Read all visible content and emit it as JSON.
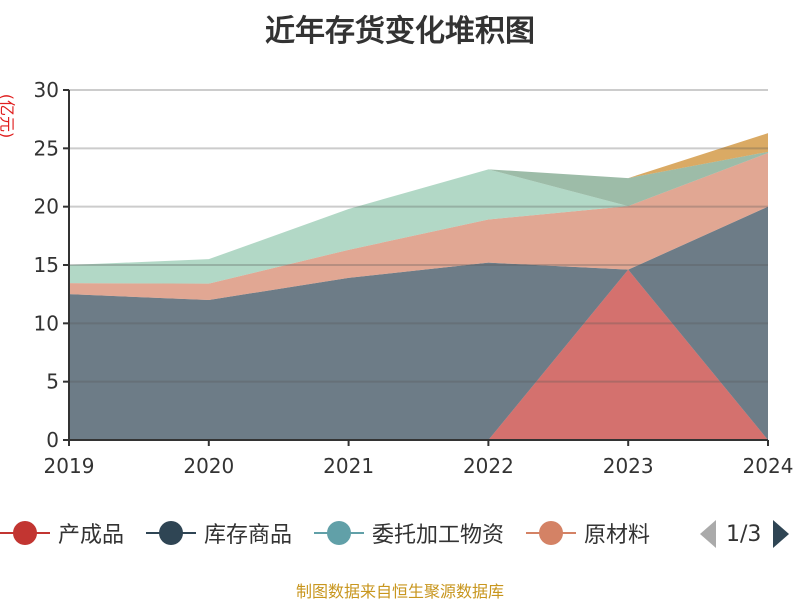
{
  "chart_data": {
    "type": "area",
    "stacked": true,
    "title": "近年存货变化堆积图",
    "ylabel": "(亿元)",
    "categories": [
      "2019",
      "2020",
      "2021",
      "2022",
      "2023",
      "2024"
    ],
    "ylim": [
      0,
      30
    ],
    "yticks": [
      0,
      5,
      10,
      15,
      20,
      25,
      30
    ],
    "grid": true,
    "legend_position": "bottom",
    "series": [
      {
        "name": "产成品",
        "color": "#c23531",
        "values": [
          0,
          0,
          0,
          0,
          14.6,
          0
        ]
      },
      {
        "name": "库存商品",
        "color": "#2f4554",
        "values": [
          12.5,
          12.0,
          13.9,
          15.2,
          0,
          20.0
        ]
      },
      {
        "name": "委托加工物资",
        "color": "#61a0a8",
        "values": [
          0,
          0,
          0,
          0,
          0,
          0
        ]
      },
      {
        "name": "原材料",
        "color": "#d48265",
        "values": [
          0.95,
          1.4,
          2.4,
          3.7,
          5.45,
          4.6
        ]
      },
      {
        "color": "#91c7ae",
        "values": [
          1.55,
          2.1,
          3.5,
          4.3,
          0,
          0
        ]
      },
      {
        "color": "#749f83",
        "values": [
          0,
          0,
          0,
          0,
          2.4,
          0.1
        ]
      },
      {
        "color": "#ca8622",
        "values": [
          0,
          0,
          0,
          0,
          0,
          1.6
        ]
      }
    ]
  },
  "legend": {
    "items": [
      "产成品",
      "库存商品",
      "委托加工物资",
      "原材料"
    ],
    "page": "1/3"
  },
  "footer": "制图数据来自恒生聚源数据库"
}
